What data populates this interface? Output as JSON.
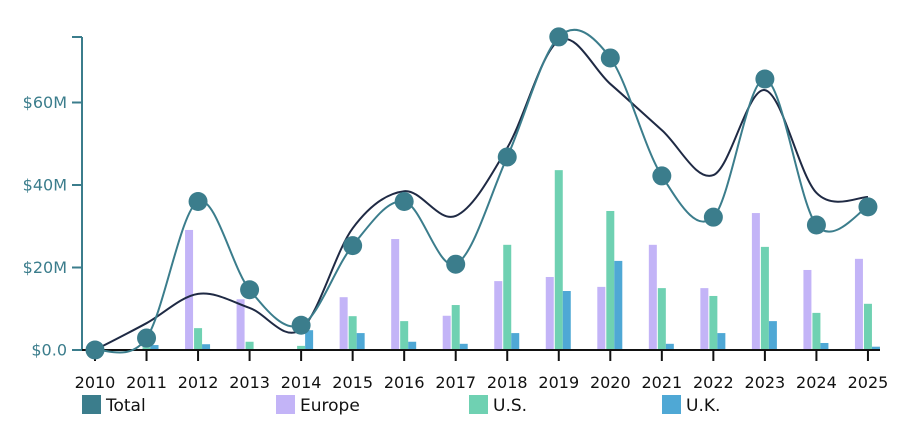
{
  "chart_data": {
    "type": "bar",
    "title": "",
    "xlabel": "",
    "ylabel": "",
    "ylim": [
      0,
      76
    ],
    "grid": false,
    "legend_position": "bottom",
    "categories": [
      "2010",
      "2011",
      "2012",
      "2013",
      "2014",
      "2015",
      "2016",
      "2017",
      "2018",
      "2019",
      "2020",
      "2021",
      "2022",
      "2023",
      "2024",
      "2025"
    ],
    "y_ticks": [
      {
        "value": 0,
        "label": "$0.0"
      },
      {
        "value": 20,
        "label": "$20M"
      },
      {
        "value": 40,
        "label": "$40M"
      },
      {
        "value": 60,
        "label": "$60M"
      }
    ],
    "series": [
      {
        "name": "Europe",
        "type": "bar",
        "color": "#c3b4f7",
        "values": [
          0,
          0,
          29.1,
          12.3,
          0,
          12.8,
          26.9,
          8.3,
          16.7,
          17.7,
          15.3,
          25.5,
          15.0,
          33.2,
          19.4,
          22.1
        ]
      },
      {
        "name": "U.S.",
        "type": "bar",
        "color": "#6fd1b2",
        "values": [
          0,
          0.7,
          5.3,
          2.0,
          1.0,
          8.2,
          7.0,
          10.9,
          25.5,
          43.6,
          33.7,
          15.0,
          13.1,
          25.0,
          9.0,
          11.2
        ]
      },
      {
        "name": "U.K.",
        "type": "bar",
        "color": "#4fa8d5",
        "values": [
          0,
          1.2,
          1.4,
          0.2,
          4.8,
          4.1,
          2.0,
          1.5,
          4.1,
          14.3,
          21.6,
          1.5,
          4.1,
          7.0,
          1.7,
          0.8
        ]
      },
      {
        "name": "Total",
        "type": "line-markers",
        "color": "#3b7d8c",
        "values": [
          0,
          2.9,
          36.0,
          14.6,
          6.0,
          25.3,
          36.0,
          20.8,
          46.8,
          75.9,
          70.8,
          42.2,
          32.2,
          65.7,
          30.3,
          34.7
        ]
      },
      {
        "name": "Total trend",
        "type": "line",
        "color": "#1f2a44",
        "values": [
          0,
          6.5,
          13.6,
          10.2,
          5.0,
          29.5,
          38.5,
          32.5,
          49.0,
          75.0,
          64.5,
          53.3,
          42.4,
          63.0,
          38.1,
          37.1
        ]
      }
    ],
    "legend": [
      {
        "label": "Total",
        "color": "#3b7d8c"
      },
      {
        "label": "Europe",
        "color": "#c3b4f7"
      },
      {
        "label": "U.S.",
        "color": "#6fd1b2"
      },
      {
        "label": "U.K.",
        "color": "#4fa8d5"
      }
    ]
  }
}
